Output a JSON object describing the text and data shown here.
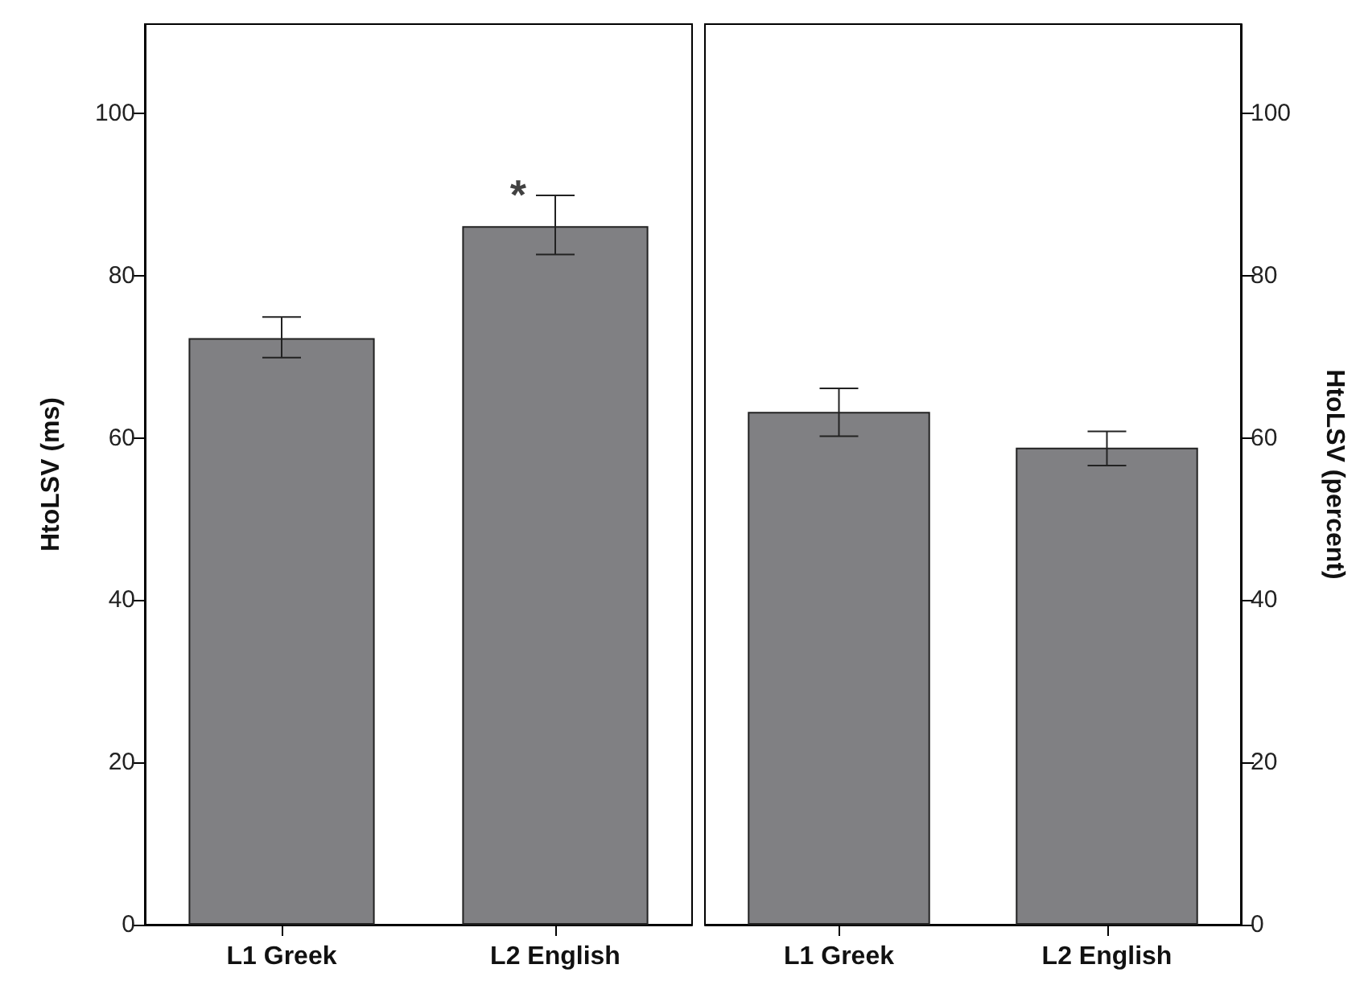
{
  "chart_data": [
    {
      "type": "bar",
      "ylabel": "HtoLSV (ms)",
      "categories": [
        "L1 Greek",
        "L2 English"
      ],
      "series": [
        {
          "color": "#808083",
          "values": [
            72.3,
            86.1
          ],
          "errors": [
            [
              69.9,
              74.9
            ],
            [
              82.6,
              89.9
            ]
          ]
        }
      ],
      "ylim": [
        0,
        111
      ],
      "yticks": [
        0,
        20,
        40,
        60,
        80,
        100
      ],
      "grid": false,
      "annotations": [
        {
          "text": "*",
          "x": "L2 English",
          "y": 90
        }
      ]
    },
    {
      "type": "bar",
      "y2label": "HtoLSV (percent)",
      "categories": [
        "L1 Greek",
        "L2 English"
      ],
      "series": [
        {
          "color": "#808083",
          "axis": "y2",
          "values": [
            63.2,
            58.8
          ],
          "errors": [
            [
              60.2,
              66.1
            ],
            [
              56.6,
              60.8
            ]
          ]
        }
      ],
      "y2lim": [
        0,
        111
      ],
      "y2ticks": [
        0,
        20,
        40,
        60,
        80,
        100
      ],
      "grid": false
    }
  ]
}
